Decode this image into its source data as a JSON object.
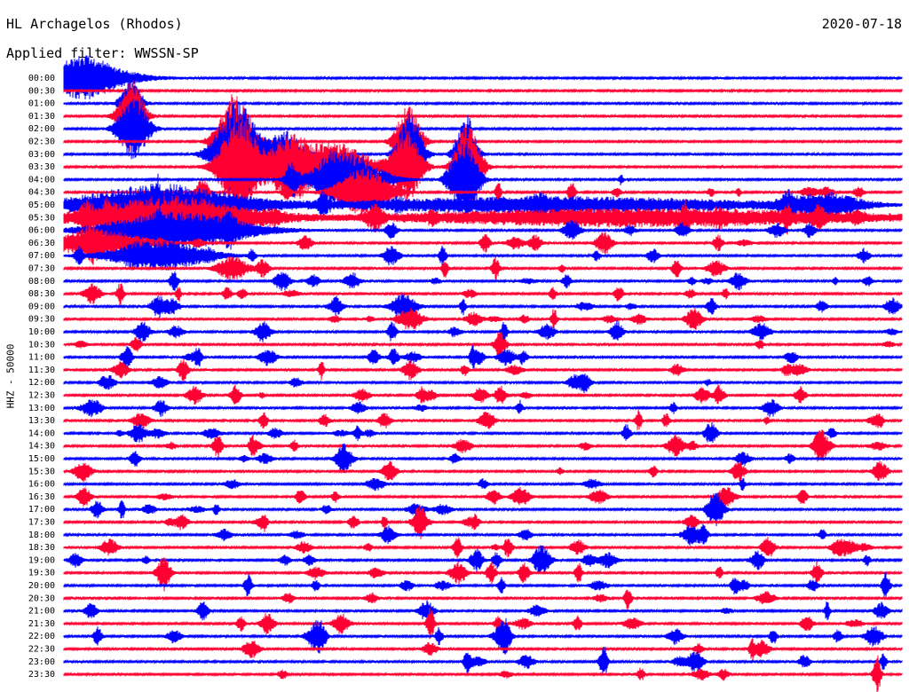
{
  "header": {
    "station": "HL Archagelos (Rhodos)",
    "date": "2020-07-18",
    "filter": "Applied filter: WWSSN-SP"
  },
  "colors": {
    "blue": "#0000ff",
    "red": "#ff0033"
  },
  "chart_data": {
    "type": "line",
    "title": "HL Archagelos (Rhodos)",
    "subtitle": "Applied filter: WWSSN-SP",
    "ylabel": "HHZ - 50000",
    "xlabel": "",
    "rows": [
      {
        "time": "00:00",
        "color": "blue"
      },
      {
        "time": "00:30",
        "color": "red"
      },
      {
        "time": "01:00",
        "color": "blue"
      },
      {
        "time": "01:30",
        "color": "red"
      },
      {
        "time": "02:00",
        "color": "blue"
      },
      {
        "time": "02:30",
        "color": "red"
      },
      {
        "time": "03:00",
        "color": "blue"
      },
      {
        "time": "03:30",
        "color": "red"
      },
      {
        "time": "04:00",
        "color": "blue"
      },
      {
        "time": "04:30",
        "color": "red"
      },
      {
        "time": "05:00",
        "color": "blue"
      },
      {
        "time": "05:30",
        "color": "red"
      },
      {
        "time": "06:00",
        "color": "blue"
      },
      {
        "time": "06:30",
        "color": "red"
      },
      {
        "time": "07:00",
        "color": "blue"
      },
      {
        "time": "07:30",
        "color": "red"
      },
      {
        "time": "08:00",
        "color": "blue"
      },
      {
        "time": "08:30",
        "color": "red"
      },
      {
        "time": "09:00",
        "color": "blue"
      },
      {
        "time": "09:30",
        "color": "red"
      },
      {
        "time": "10:00",
        "color": "blue"
      },
      {
        "time": "10:30",
        "color": "red"
      },
      {
        "time": "11:00",
        "color": "blue"
      },
      {
        "time": "11:30",
        "color": "red"
      },
      {
        "time": "12:00",
        "color": "blue"
      },
      {
        "time": "12:30",
        "color": "red"
      },
      {
        "time": "13:00",
        "color": "blue"
      },
      {
        "time": "13:30",
        "color": "red"
      },
      {
        "time": "14:00",
        "color": "blue"
      },
      {
        "time": "14:30",
        "color": "red"
      },
      {
        "time": "15:00",
        "color": "blue"
      },
      {
        "time": "15:30",
        "color": "red"
      },
      {
        "time": "16:00",
        "color": "blue"
      },
      {
        "time": "16:30",
        "color": "red"
      },
      {
        "time": "17:00",
        "color": "blue"
      },
      {
        "time": "17:30",
        "color": "red"
      },
      {
        "time": "18:00",
        "color": "blue"
      },
      {
        "time": "18:30",
        "color": "red"
      },
      {
        "time": "19:00",
        "color": "blue"
      },
      {
        "time": "19:30",
        "color": "red"
      },
      {
        "time": "20:00",
        "color": "blue"
      },
      {
        "time": "20:30",
        "color": "red"
      },
      {
        "time": "21:00",
        "color": "blue"
      },
      {
        "time": "21:30",
        "color": "red"
      },
      {
        "time": "22:00",
        "color": "blue"
      },
      {
        "time": "22:30",
        "color": "red"
      },
      {
        "time": "23:00",
        "color": "blue"
      },
      {
        "time": "23:30",
        "color": "red"
      }
    ]
  }
}
